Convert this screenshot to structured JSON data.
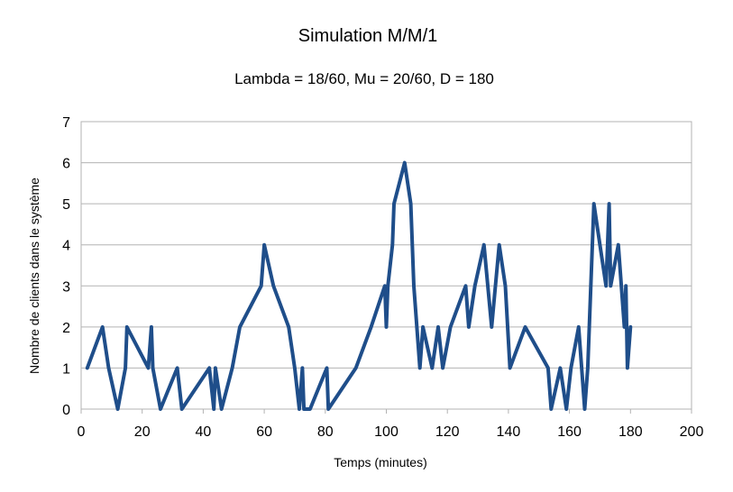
{
  "chart_data": {
    "type": "line",
    "title": "Simulation M/M/1",
    "subtitle": "Lambda = 18/60, Mu = 20/60, D = 180",
    "xlabel": "Temps (minutes)",
    "ylabel": "Nombre de clients dans le système",
    "xlim": [
      0,
      200
    ],
    "ylim": [
      0,
      7
    ],
    "xticks": [
      0,
      20,
      40,
      60,
      80,
      100,
      120,
      140,
      160,
      180,
      200
    ],
    "yticks": [
      0,
      1,
      2,
      3,
      4,
      5,
      6,
      7
    ],
    "grid": "horizontal",
    "legend": "none",
    "line_color": "#1f4e8a",
    "series": [
      {
        "x": [
          2,
          7,
          9,
          12,
          14.5,
          15,
          22,
          23,
          23.5,
          26,
          31.5,
          33,
          42,
          43.5,
          44,
          46,
          49.5,
          52,
          59,
          60,
          63,
          68,
          70,
          71.5,
          72.5,
          73,
          73.5,
          75,
          80.5,
          81,
          90,
          95,
          99.5,
          100,
          100.5,
          102,
          102.5,
          106,
          108,
          109,
          111,
          112,
          115,
          117,
          118.5,
          121,
          126,
          127,
          129,
          132,
          134.5,
          137,
          139,
          140.5,
          145.5,
          153,
          154,
          157,
          159,
          160.5,
          163,
          165,
          166,
          166.5,
          168,
          170,
          172,
          173,
          173.5,
          176,
          178,
          178.5,
          179,
          180
        ],
        "y": [
          1,
          2,
          1,
          0,
          1,
          2,
          1,
          2,
          1,
          0,
          1,
          0,
          1,
          0,
          1,
          0,
          1,
          2,
          3,
          4,
          3,
          2,
          1,
          0,
          1,
          0,
          0,
          0,
          1,
          0,
          1,
          2,
          3,
          2,
          3,
          4,
          5,
          6,
          5,
          3,
          1,
          2,
          1,
          2,
          1,
          2,
          3,
          2,
          3,
          4,
          2,
          4,
          3,
          1,
          2,
          1,
          0,
          1,
          0,
          1,
          2,
          0,
          1,
          2,
          5,
          4,
          3,
          5,
          3,
          4,
          2,
          3,
          1,
          2
        ]
      }
    ]
  }
}
